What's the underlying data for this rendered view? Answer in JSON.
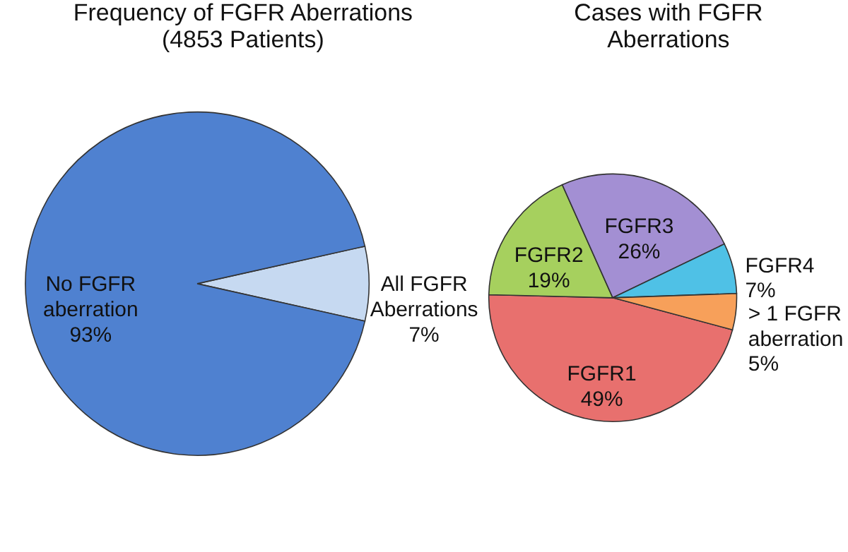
{
  "chart_data": [
    {
      "type": "pie",
      "title": "Frequency of FGFR Aberrations (4853 Patients)",
      "categories": [
        "All FGFR Aberrations",
        "No FGFR aberration"
      ],
      "values": [
        7,
        93
      ],
      "colors": [
        "#c6d9f1",
        "#4f81d0"
      ],
      "value_labels": [
        "7%",
        "93%"
      ]
    },
    {
      "type": "pie",
      "title": "Cases with FGFR Aberrations",
      "categories": [
        "FGFR1",
        "FGFR2",
        "FGFR3",
        "FGFR4",
        "> 1 FGFR aberration"
      ],
      "values": [
        49,
        19,
        26,
        7,
        5
      ],
      "colors": [
        "#e8706e",
        "#a6d05e",
        "#a38fd3",
        "#4fc1e6",
        "#f7a05a"
      ],
      "value_labels": [
        "49%",
        "19%",
        "26%",
        "7%",
        "5%"
      ]
    }
  ]
}
